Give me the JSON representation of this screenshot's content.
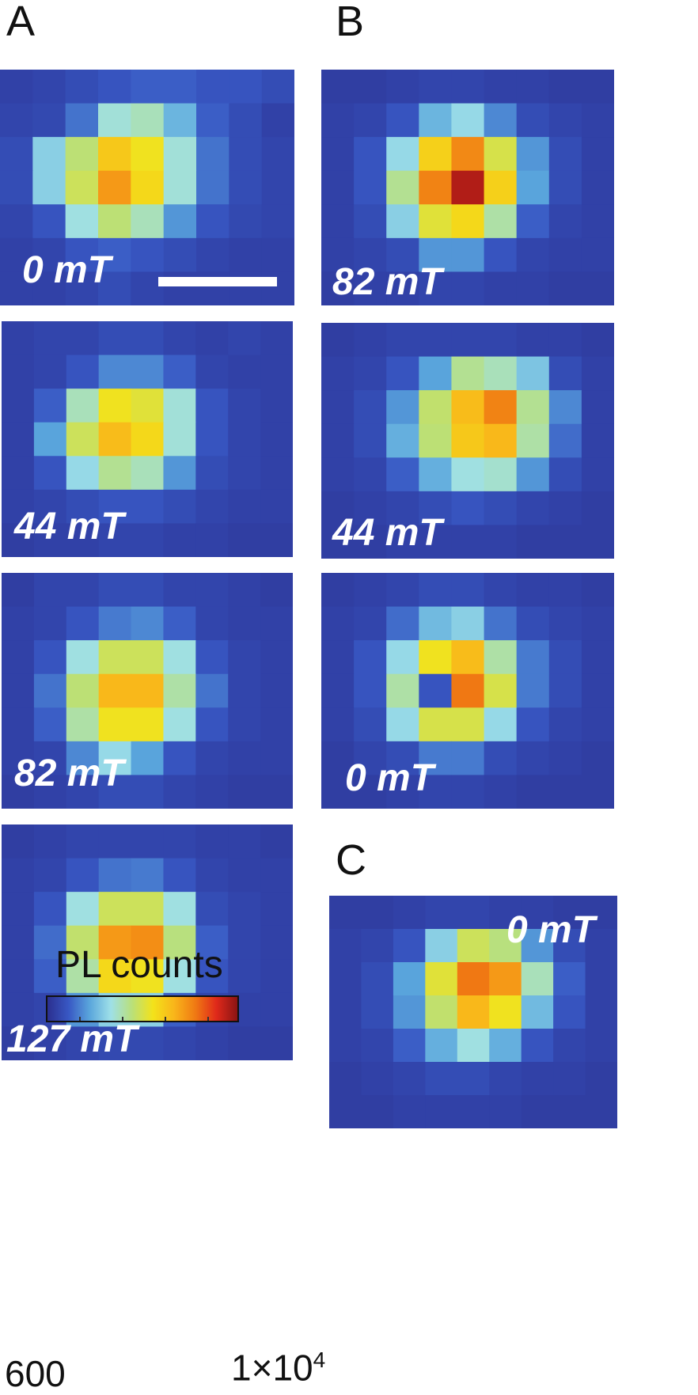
{
  "panel_labels": {
    "a": "A",
    "b": "B",
    "c": "C"
  },
  "colorbar": {
    "title": "PL counts",
    "min_label": "600",
    "max_base": "1×10",
    "max_exp": "4",
    "colors": [
      "#2b2f8f",
      "#3858c4",
      "#5aa6dc",
      "#9ee0e8",
      "#b9e07a",
      "#f3e21a",
      "#f9b51a",
      "#f07a13",
      "#e0291a",
      "#8a1414"
    ]
  },
  "chart_data": [
    {
      "type": "heatmap",
      "panel": "A",
      "field": "0 mT",
      "values": [
        [
          0.05,
          0.06,
          0.08,
          0.1,
          0.12,
          0.12,
          0.1,
          0.1,
          0.08
        ],
        [
          0.06,
          0.07,
          0.15,
          0.35,
          0.38,
          0.25,
          0.12,
          0.08,
          0.05
        ],
        [
          0.08,
          0.3,
          0.45,
          0.62,
          0.55,
          0.35,
          0.15,
          0.08,
          0.06
        ],
        [
          0.08,
          0.3,
          0.48,
          0.72,
          0.58,
          0.35,
          0.15,
          0.08,
          0.06
        ],
        [
          0.06,
          0.1,
          0.34,
          0.45,
          0.38,
          0.2,
          0.1,
          0.07,
          0.06
        ],
        [
          0.05,
          0.06,
          0.1,
          0.12,
          0.1,
          0.08,
          0.06,
          0.05,
          0.05
        ],
        [
          0.05,
          0.05,
          0.06,
          0.08,
          0.06,
          0.05,
          0.05,
          0.05,
          0.05
        ]
      ]
    },
    {
      "type": "heatmap",
      "panel": "A",
      "field": "44 mT",
      "values": [
        [
          0.05,
          0.06,
          0.06,
          0.08,
          0.08,
          0.06,
          0.05,
          0.06,
          0.05
        ],
        [
          0.05,
          0.06,
          0.1,
          0.18,
          0.18,
          0.12,
          0.06,
          0.05,
          0.05
        ],
        [
          0.05,
          0.12,
          0.38,
          0.55,
          0.52,
          0.35,
          0.1,
          0.06,
          0.05
        ],
        [
          0.05,
          0.22,
          0.48,
          0.65,
          0.58,
          0.35,
          0.1,
          0.06,
          0.05
        ],
        [
          0.05,
          0.1,
          0.32,
          0.42,
          0.38,
          0.2,
          0.08,
          0.06,
          0.05
        ],
        [
          0.05,
          0.06,
          0.08,
          0.1,
          0.1,
          0.08,
          0.06,
          0.05,
          0.05
        ],
        [
          0.04,
          0.05,
          0.05,
          0.06,
          0.06,
          0.05,
          0.05,
          0.04,
          0.04
        ]
      ]
    },
    {
      "type": "heatmap",
      "panel": "A",
      "field": "82 mT",
      "values": [
        [
          0.04,
          0.06,
          0.06,
          0.08,
          0.08,
          0.06,
          0.06,
          0.05,
          0.04
        ],
        [
          0.05,
          0.06,
          0.1,
          0.16,
          0.18,
          0.12,
          0.06,
          0.05,
          0.05
        ],
        [
          0.05,
          0.1,
          0.34,
          0.48,
          0.48,
          0.34,
          0.1,
          0.06,
          0.05
        ],
        [
          0.05,
          0.15,
          0.45,
          0.66,
          0.66,
          0.4,
          0.15,
          0.06,
          0.05
        ],
        [
          0.05,
          0.12,
          0.4,
          0.55,
          0.55,
          0.34,
          0.1,
          0.06,
          0.05
        ],
        [
          0.05,
          0.06,
          0.18,
          0.32,
          0.22,
          0.1,
          0.06,
          0.05,
          0.05
        ],
        [
          0.04,
          0.05,
          0.06,
          0.08,
          0.08,
          0.06,
          0.05,
          0.04,
          0.04
        ]
      ]
    },
    {
      "type": "heatmap",
      "panel": "A",
      "field": "127 mT",
      "values": [
        [
          0.04,
          0.05,
          0.06,
          0.06,
          0.06,
          0.06,
          0.05,
          0.05,
          0.04
        ],
        [
          0.05,
          0.06,
          0.1,
          0.15,
          0.16,
          0.1,
          0.06,
          0.05,
          0.05
        ],
        [
          0.05,
          0.1,
          0.34,
          0.48,
          0.48,
          0.34,
          0.08,
          0.06,
          0.05
        ],
        [
          0.05,
          0.14,
          0.46,
          0.72,
          0.74,
          0.44,
          0.12,
          0.06,
          0.05
        ],
        [
          0.05,
          0.12,
          0.4,
          0.58,
          0.55,
          0.34,
          0.1,
          0.06,
          0.05
        ],
        [
          0.05,
          0.06,
          0.2,
          0.3,
          0.3,
          0.12,
          0.06,
          0.05,
          0.05
        ],
        [
          0.04,
          0.05,
          0.06,
          0.07,
          0.07,
          0.06,
          0.05,
          0.04,
          0.04
        ]
      ]
    },
    {
      "type": "heatmap",
      "panel": "B",
      "field": "82 mT",
      "values": [
        [
          0.04,
          0.04,
          0.05,
          0.06,
          0.06,
          0.05,
          0.05,
          0.04,
          0.04
        ],
        [
          0.05,
          0.06,
          0.1,
          0.25,
          0.32,
          0.18,
          0.08,
          0.06,
          0.05
        ],
        [
          0.05,
          0.1,
          0.32,
          0.6,
          0.75,
          0.5,
          0.2,
          0.08,
          0.05
        ],
        [
          0.05,
          0.1,
          0.42,
          0.76,
          0.95,
          0.6,
          0.22,
          0.08,
          0.05
        ],
        [
          0.05,
          0.08,
          0.3,
          0.52,
          0.58,
          0.4,
          0.12,
          0.06,
          0.05
        ],
        [
          0.05,
          0.06,
          0.08,
          0.2,
          0.2,
          0.1,
          0.06,
          0.05,
          0.05
        ],
        [
          0.04,
          0.05,
          0.05,
          0.06,
          0.06,
          0.05,
          0.05,
          0.04,
          0.04
        ]
      ]
    },
    {
      "type": "heatmap",
      "panel": "B",
      "field": "44 mT",
      "values": [
        [
          0.04,
          0.05,
          0.06,
          0.06,
          0.06,
          0.06,
          0.05,
          0.05,
          0.04
        ],
        [
          0.05,
          0.06,
          0.1,
          0.22,
          0.42,
          0.38,
          0.28,
          0.08,
          0.05
        ],
        [
          0.05,
          0.08,
          0.2,
          0.46,
          0.65,
          0.76,
          0.42,
          0.18,
          0.05
        ],
        [
          0.05,
          0.08,
          0.24,
          0.45,
          0.62,
          0.66,
          0.4,
          0.14,
          0.05
        ],
        [
          0.05,
          0.06,
          0.12,
          0.24,
          0.34,
          0.36,
          0.2,
          0.08,
          0.05
        ],
        [
          0.04,
          0.05,
          0.06,
          0.08,
          0.1,
          0.08,
          0.06,
          0.05,
          0.04
        ],
        [
          0.04,
          0.04,
          0.05,
          0.05,
          0.05,
          0.05,
          0.04,
          0.04,
          0.04
        ]
      ]
    },
    {
      "type": "heatmap",
      "panel": "B",
      "field": "0 mT",
      "values": [
        [
          0.04,
          0.05,
          0.06,
          0.08,
          0.08,
          0.06,
          0.05,
          0.05,
          0.04
        ],
        [
          0.05,
          0.06,
          0.14,
          0.26,
          0.3,
          0.15,
          0.08,
          0.06,
          0.05
        ],
        [
          0.05,
          0.1,
          0.32,
          0.55,
          0.65,
          0.4,
          0.16,
          0.08,
          0.05
        ],
        [
          0.05,
          0.1,
          0.4,
          0.1,
          0.78,
          0.5,
          0.16,
          0.08,
          0.05
        ],
        [
          0.05,
          0.08,
          0.32,
          0.5,
          0.5,
          0.32,
          0.1,
          0.06,
          0.05
        ],
        [
          0.04,
          0.06,
          0.08,
          0.16,
          0.16,
          0.08,
          0.06,
          0.05,
          0.04
        ],
        [
          0.04,
          0.04,
          0.05,
          0.06,
          0.06,
          0.05,
          0.04,
          0.04,
          0.04
        ]
      ]
    },
    {
      "type": "heatmap",
      "panel": "C",
      "field": "0 mT",
      "values": [
        [
          0.04,
          0.04,
          0.05,
          0.06,
          0.06,
          0.05,
          0.05,
          0.04,
          0.04
        ],
        [
          0.05,
          0.06,
          0.1,
          0.3,
          0.48,
          0.44,
          0.2,
          0.08,
          0.05
        ],
        [
          0.05,
          0.08,
          0.22,
          0.52,
          0.78,
          0.72,
          0.38,
          0.12,
          0.05
        ],
        [
          0.05,
          0.08,
          0.2,
          0.46,
          0.66,
          0.55,
          0.26,
          0.1,
          0.05
        ],
        [
          0.05,
          0.06,
          0.12,
          0.24,
          0.34,
          0.24,
          0.1,
          0.06,
          0.05
        ],
        [
          0.04,
          0.05,
          0.06,
          0.08,
          0.08,
          0.06,
          0.05,
          0.05,
          0.04
        ],
        [
          0.04,
          0.04,
          0.05,
          0.05,
          0.05,
          0.05,
          0.04,
          0.04,
          0.04
        ]
      ]
    }
  ]
}
